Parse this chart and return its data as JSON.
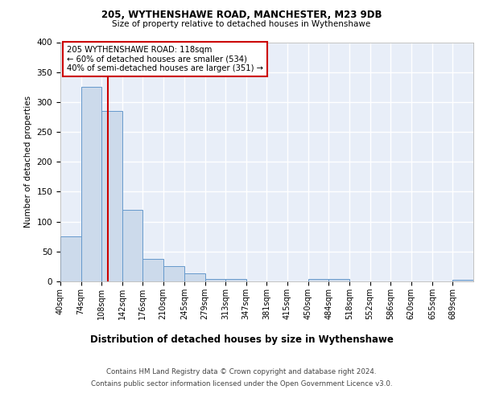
{
  "title1": "205, WYTHENSHAWE ROAD, MANCHESTER, M23 9DB",
  "title2": "Size of property relative to detached houses in Wythenshawe",
  "xlabel": "Distribution of detached houses by size in Wythenshawe",
  "ylabel": "Number of detached properties",
  "bin_edges": [
    40,
    74,
    108,
    142,
    176,
    210,
    245,
    279,
    313,
    347,
    381,
    415,
    450,
    484,
    518,
    552,
    586,
    620,
    655,
    689,
    723
  ],
  "bar_heights": [
    75,
    325,
    285,
    120,
    38,
    25,
    13,
    4,
    4,
    0,
    0,
    0,
    4,
    4,
    0,
    0,
    0,
    0,
    0,
    3
  ],
  "bar_color": "#ccdaeb",
  "bar_edge_color": "#6699cc",
  "background_color": "#e8eef8",
  "grid_color": "#ffffff",
  "red_line_x": 118,
  "annotation_text": "205 WYTHENSHAWE ROAD: 118sqm\n← 60% of detached houses are smaller (534)\n40% of semi-detached houses are larger (351) →",
  "annotation_box_color": "#ffffff",
  "annotation_box_edge_color": "#cc0000",
  "footer1": "Contains HM Land Registry data © Crown copyright and database right 2024.",
  "footer2": "Contains public sector information licensed under the Open Government Licence v3.0.",
  "ylim": [
    0,
    400
  ],
  "yticks": [
    0,
    50,
    100,
    150,
    200,
    250,
    300,
    350,
    400
  ]
}
